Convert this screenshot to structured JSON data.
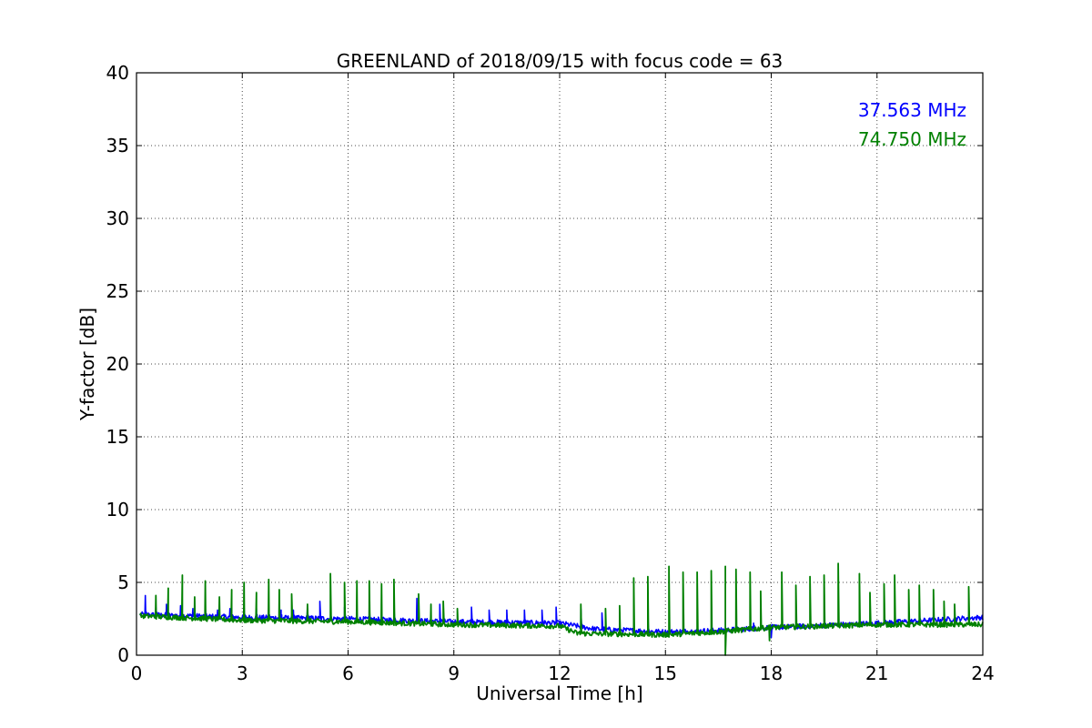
{
  "chart_data": {
    "type": "line",
    "title": "GREENLAND of 2018/09/15 with focus code = 63",
    "xlabel": "Universal Time [h]",
    "ylabel": "Y-factor [dB]",
    "xlim": [
      0,
      24
    ],
    "ylim": [
      0,
      40
    ],
    "xticks": [
      0,
      3,
      6,
      9,
      12,
      15,
      18,
      21,
      24
    ],
    "yticks": [
      0,
      5,
      10,
      15,
      20,
      25,
      30,
      35,
      40
    ],
    "grid": true,
    "legend_position": "top-right",
    "series": [
      {
        "name": "37.563 MHz",
        "color": "#0000ff",
        "baseline": [
          [
            0.1,
            2.8
          ],
          [
            3,
            2.6
          ],
          [
            6,
            2.5
          ],
          [
            9,
            2.3
          ],
          [
            12,
            2.2
          ],
          [
            12.5,
            2.0
          ],
          [
            13,
            1.8
          ],
          [
            15,
            1.6
          ],
          [
            16.5,
            1.7
          ],
          [
            18,
            1.9
          ],
          [
            21,
            2.2
          ],
          [
            24,
            2.6
          ]
        ],
        "spikes": [
          [
            0.25,
            4.1
          ],
          [
            0.55,
            3.3
          ],
          [
            0.85,
            3.5
          ],
          [
            1.25,
            3.4
          ],
          [
            1.6,
            3.2
          ],
          [
            1.95,
            3.3
          ],
          [
            2.3,
            3.1
          ],
          [
            2.65,
            3.2
          ],
          [
            3.05,
            3.3
          ],
          [
            3.4,
            3.2
          ],
          [
            3.75,
            3.3
          ],
          [
            4.1,
            3.1
          ],
          [
            4.45,
            3.1
          ],
          [
            4.85,
            3.2
          ],
          [
            5.2,
            3.7
          ],
          [
            5.9,
            3.3
          ],
          [
            6.6,
            3.4
          ],
          [
            7.3,
            3.3
          ],
          [
            7.95,
            3.9
          ],
          [
            8.6,
            3.5
          ],
          [
            9.5,
            3.3
          ],
          [
            10.0,
            3.1
          ],
          [
            10.5,
            3.1
          ],
          [
            11.0,
            3.1
          ],
          [
            11.5,
            3.1
          ],
          [
            11.9,
            3.3
          ],
          [
            12.6,
            3.2
          ],
          [
            13.2,
            2.9
          ],
          [
            14.5,
            2.7
          ],
          [
            17.5,
            2.2
          ],
          [
            18.0,
            1.2
          ]
        ]
      },
      {
        "name": "74.750 MHz",
        "color": "#008000",
        "baseline": [
          [
            0.1,
            2.7
          ],
          [
            3,
            2.4
          ],
          [
            6,
            2.3
          ],
          [
            9,
            2.1
          ],
          [
            12,
            2.0
          ],
          [
            12.5,
            1.5
          ],
          [
            15,
            1.4
          ],
          [
            16.5,
            1.6
          ],
          [
            18,
            1.9
          ],
          [
            21,
            2.1
          ],
          [
            24,
            2.1
          ]
        ],
        "spikes": [
          [
            0.55,
            4.1
          ],
          [
            0.9,
            4.6
          ],
          [
            1.3,
            5.5
          ],
          [
            1.65,
            4.0
          ],
          [
            1.95,
            5.1
          ],
          [
            2.35,
            4.0
          ],
          [
            2.7,
            4.5
          ],
          [
            3.05,
            5.0
          ],
          [
            3.4,
            4.3
          ],
          [
            3.75,
            5.2
          ],
          [
            4.05,
            4.5
          ],
          [
            4.4,
            4.2
          ],
          [
            4.85,
            3.5
          ],
          [
            5.5,
            5.6
          ],
          [
            5.9,
            5.0
          ],
          [
            6.25,
            5.1
          ],
          [
            6.6,
            5.1
          ],
          [
            6.95,
            4.9
          ],
          [
            7.3,
            5.2
          ],
          [
            8.0,
            4.2
          ],
          [
            8.35,
            3.5
          ],
          [
            8.7,
            3.7
          ],
          [
            9.1,
            3.2
          ],
          [
            12.6,
            3.5
          ],
          [
            13.3,
            3.2
          ],
          [
            13.7,
            3.4
          ],
          [
            14.1,
            5.3
          ],
          [
            14.5,
            5.4
          ],
          [
            15.1,
            6.1
          ],
          [
            15.5,
            5.7
          ],
          [
            15.9,
            5.7
          ],
          [
            16.3,
            5.8
          ],
          [
            16.7,
            6.1
          ],
          [
            17.0,
            5.9
          ],
          [
            17.4,
            5.7
          ],
          [
            17.7,
            4.4
          ],
          [
            18.3,
            5.7
          ],
          [
            18.7,
            4.8
          ],
          [
            19.1,
            5.4
          ],
          [
            19.5,
            5.5
          ],
          [
            19.9,
            6.3
          ],
          [
            20.5,
            5.6
          ],
          [
            20.8,
            4.3
          ],
          [
            21.2,
            4.9
          ],
          [
            21.5,
            5.5
          ],
          [
            21.9,
            4.5
          ],
          [
            22.2,
            4.8
          ],
          [
            22.6,
            4.5
          ],
          [
            22.9,
            3.7
          ],
          [
            23.2,
            3.5
          ],
          [
            23.6,
            4.7
          ]
        ],
        "dips": [
          [
            16.7,
            0.0
          ],
          [
            17.95,
            1.0
          ]
        ]
      }
    ]
  }
}
